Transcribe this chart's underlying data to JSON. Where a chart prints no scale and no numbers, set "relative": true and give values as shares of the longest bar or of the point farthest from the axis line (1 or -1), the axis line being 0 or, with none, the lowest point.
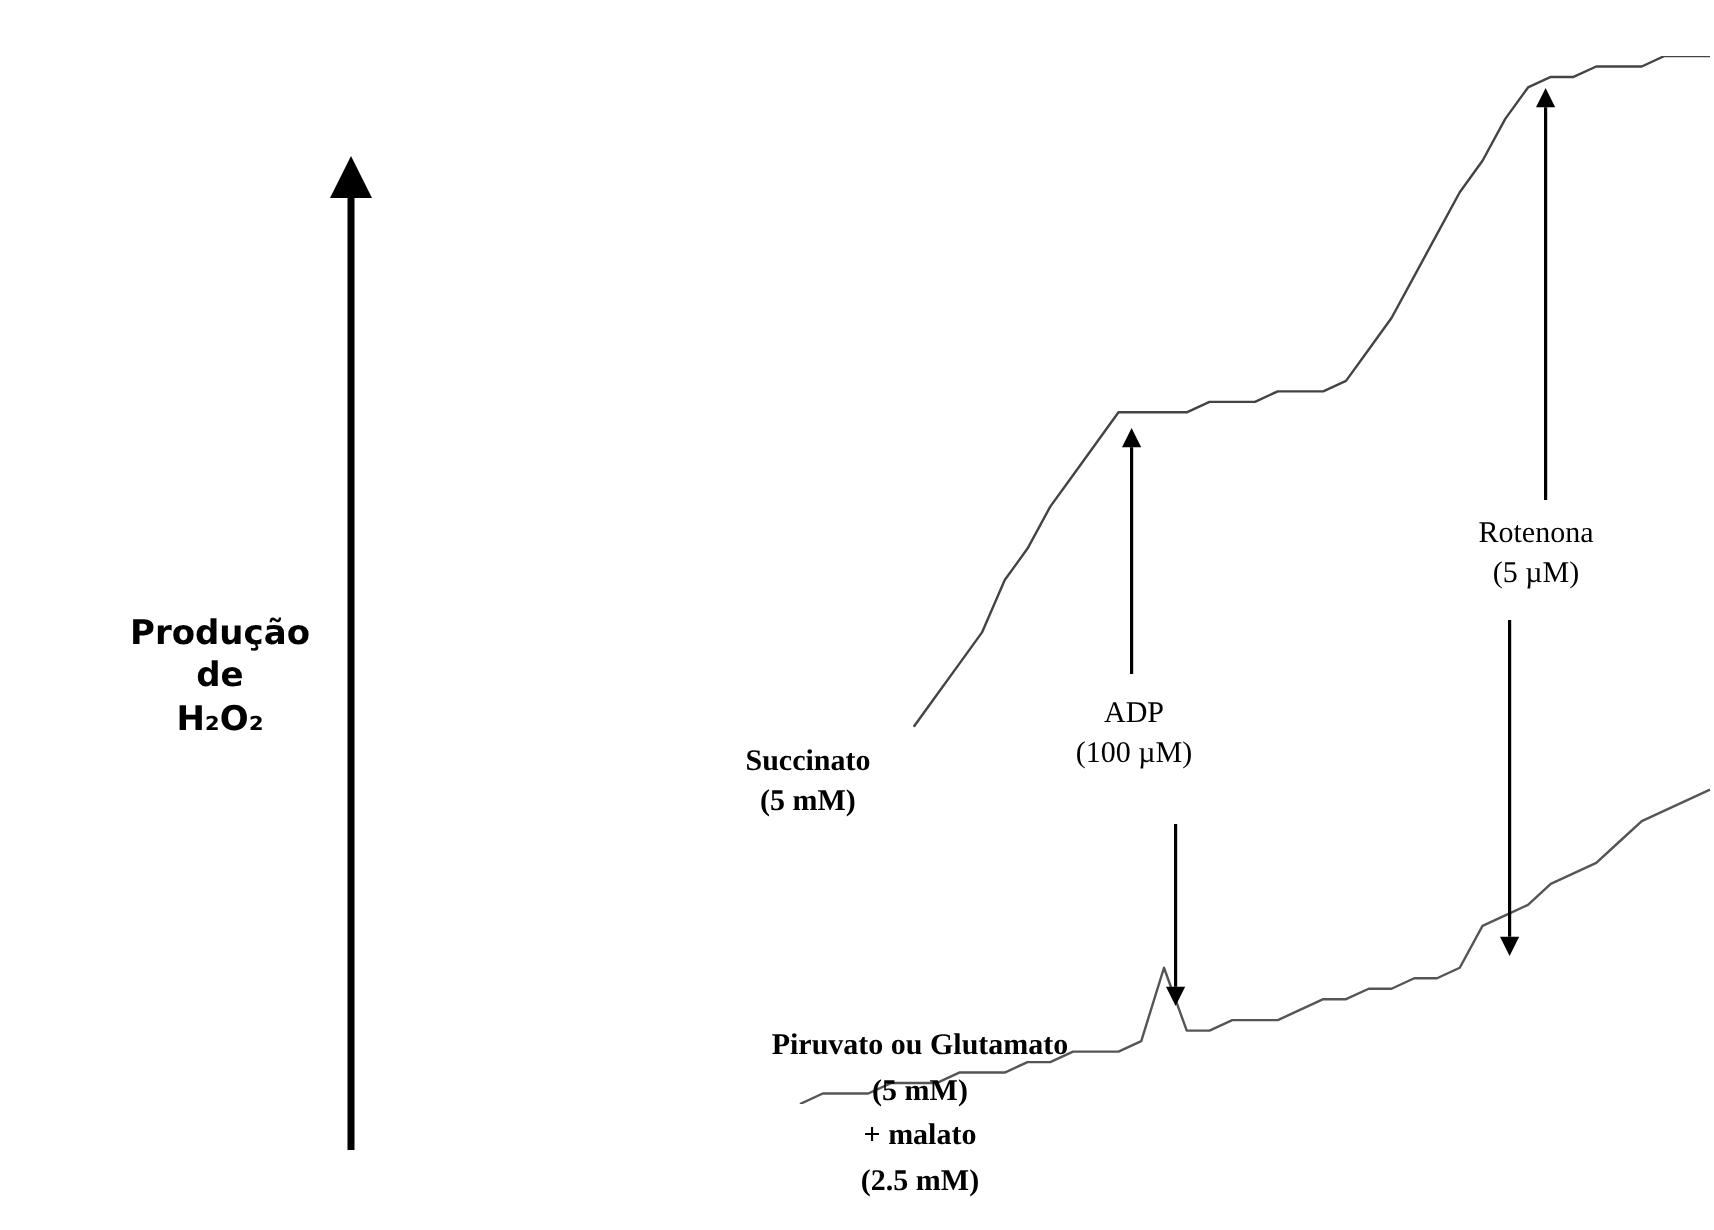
{
  "chart_data": {
    "type": "line",
    "relative": true,
    "categories": [
      null,
      null,
      null,
      null,
      null,
      null,
      null,
      null,
      null,
      null,
      null,
      null,
      null,
      null,
      null,
      null,
      null,
      null,
      null,
      null,
      null,
      null,
      null,
      null,
      null,
      null,
      null,
      null,
      null,
      null,
      null,
      null,
      null,
      null,
      null,
      null,
      null,
      null,
      null,
      null,
      null
    ],
    "series": [
      {
        "color": "#444444",
        "values": [
          null,
          null,
          null,
          null,
          null,
          0.36,
          0.39,
          0.42,
          0.45,
          0.5,
          0.53,
          0.57,
          0.6,
          0.63,
          0.66,
          0.66,
          0.66,
          0.66,
          0.67,
          0.67,
          0.67,
          0.68,
          0.68,
          0.68,
          0.69,
          0.72,
          0.75,
          0.79,
          0.83,
          0.87,
          0.9,
          0.94,
          0.97,
          0.98,
          0.98,
          0.99,
          0.99,
          0.99,
          1.0,
          1.0,
          1
        ]
      },
      {
        "color": "#555555",
        "values": [
          0,
          0.01,
          0.01,
          0.01,
          0.02,
          0.02,
          0.02,
          0.03,
          0.03,
          0.03,
          0.04,
          0.04,
          0.05,
          0.05,
          0.05,
          0.06,
          0.13,
          0.07,
          0.07,
          0.08,
          0.08,
          0.08,
          0.09,
          0.1,
          0.1,
          0.11,
          0.11,
          0.12,
          0.12,
          0.13,
          0.17,
          0.18,
          0.19,
          0.21,
          0.22,
          0.23,
          0.25,
          0.27,
          0.28,
          0.29,
          0.3
        ]
      }
    ],
    "annotations": [
      "Produção\nde\nH₂O₂",
      "Succinato\n(5 mM)",
      "Piruvato ou Glutamato\n(5 mM)\n+ malato\n(2.5 mM)",
      "ADP\n(100 µM)",
      "Rotenona\n(5 µM)"
    ],
    "legend": false
  }
}
